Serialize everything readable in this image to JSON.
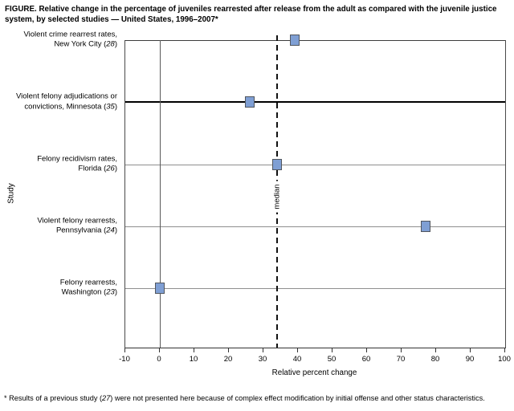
{
  "chart_data": {
    "type": "scatter",
    "orientation": "horizontal-dot-plot",
    "title": "FIGURE. Relative change in the percentage of juveniles rearrested after release from the adult as compared with the juvenile justice system, by selected studies — United States, 1996–2007*",
    "footnote": "* Results of a previous study (27) were not presented here because of complex effect modification by initial offense and other status characteristics.",
    "xlabel": "Relative percent change",
    "ylabel": "Study",
    "xlim": [
      -10,
      100
    ],
    "xticks": [
      -10,
      0,
      10,
      20,
      30,
      40,
      50,
      60,
      70,
      80,
      90,
      100
    ],
    "grid": "one horizontal gridline per study; vertical reference line at 0",
    "legend": "none",
    "median_line": {
      "value": 34,
      "label": "median",
      "style": "dashed-vertical"
    },
    "marker": {
      "shape": "square",
      "fill": "#7f9fd4",
      "border": "#51565e"
    },
    "categories": [
      "Violent crime rearrest rates, New York City (28)",
      "Violent felony adjudications or convictions, Minnesota (35)",
      "Felony recidivism rates, Florida (26)",
      "Violent felony rearrests, Pennsylvania (24)",
      "Felony rearrests, Washington (23)"
    ],
    "category_label_lines": [
      [
        "Violent crime rearrest rates,",
        "New York City (28)"
      ],
      [
        "Violent felony adjudications or",
        "convictions, Minnesota (35)"
      ],
      [
        "Felony recidivism rates,",
        "Florida (26)"
      ],
      [
        "Violent felony rearrests,",
        "Pennsylvania (24)"
      ],
      [
        "Felony rearrests,",
        "Washington (23)"
      ]
    ],
    "values": [
      39,
      26,
      34,
      77,
      0
    ]
  }
}
